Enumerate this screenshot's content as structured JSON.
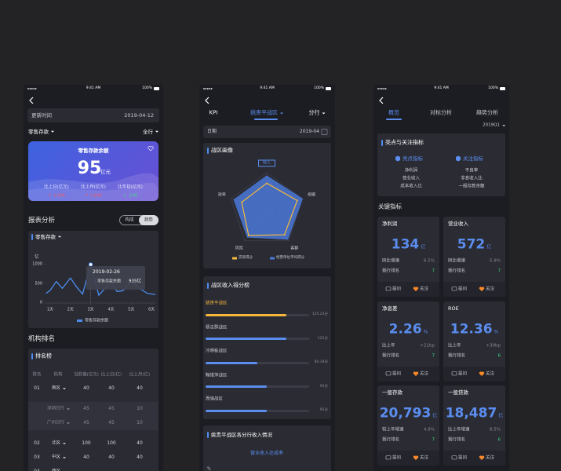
{
  "status_bar": {
    "time": "9:41 AM",
    "battery": "100%"
  },
  "overview_screen": {
    "update_label": "更新时间",
    "update_date": "2019-04-12",
    "metric_filter": "零售存款",
    "scope_filter": "全行",
    "balance_card": {
      "title": "零售存款余额",
      "value": "95",
      "unit": "亿元",
      "stats": [
        {
          "label": "比上日(亿元)",
          "value": "↑ +100"
        },
        {
          "label": "比上月(亿元)",
          "value": "↑ +100"
        },
        {
          "label": "比年初(亿元)",
          "value": "↓ -100"
        }
      ]
    },
    "report_title": "报表分析",
    "view_toggle": [
      "构成",
      "趋势"
    ],
    "trend_chart": {
      "type": "line",
      "title": "零售存款",
      "y_unit": "亿",
      "x": [
        0.8,
        1,
        1.3,
        1.6,
        2,
        2.3,
        2.6,
        3,
        3.4,
        3.7,
        4,
        4.3,
        4.6,
        5,
        5.4,
        5.8,
        6.2
      ],
      "xlim": [
        0.8,
        6.2
      ],
      "xticks": [
        {
          "value": 1,
          "label": "1天"
        },
        {
          "value": 2,
          "label": "2天"
        },
        {
          "value": 3,
          "label": "3天"
        },
        {
          "value": 4,
          "label": "4天"
        },
        {
          "value": 5,
          "label": "5天"
        },
        {
          "value": 6,
          "label": "6天"
        }
      ],
      "series": [
        {
          "name": "零售存款余额",
          "color": "#4d8ef0",
          "values": [
            250,
            330,
            560,
            380,
            650,
            420,
            230,
            1000,
            200,
            380,
            540,
            300,
            320,
            560,
            380,
            250,
            220
          ]
        }
      ],
      "ylim": [
        0,
        1000
      ],
      "yticks": [
        0,
        500,
        1000
      ],
      "grid": false,
      "tooltip": {
        "date": "2019-02-26",
        "series": "零售存款余额",
        "value": "935亿"
      }
    },
    "ranking_title": "机构排名",
    "ranking_table": {
      "title": "排名榜",
      "columns": [
        "排名",
        "机构",
        "当前值(亿元)",
        "比上日(亿)",
        "比上月(亿)"
      ],
      "rows": [
        {
          "rank": "01",
          "org": "南区",
          "cells": [
            "40",
            "40",
            "40"
          ]
        },
        {
          "org": "深圳分行",
          "cells": [
            "45",
            "45",
            "10"
          ]
        },
        {
          "org": "广州分行",
          "cells": [
            "45",
            "45",
            "10"
          ]
        },
        {
          "rank": "02",
          "org": "北区",
          "cells": [
            "100",
            "100",
            "40"
          ]
        },
        {
          "rank": "03",
          "org": "中区",
          "cells": [
            "40",
            "40",
            "40"
          ]
        },
        {
          "rank": "04",
          "org": "西区"
        }
      ]
    }
  },
  "kpi_screen": {
    "tabs": [
      "KPI",
      "姚贵平战区",
      "分行"
    ],
    "date_label": "日期",
    "date_value": "2019-04",
    "profile_title": "战区画像",
    "radar": {
      "type": "radar",
      "axes": [
        "收入",
        "规模",
        "客群",
        "风险",
        "效率"
      ],
      "rlim": [
        0,
        100
      ],
      "series": [
        {
          "name": "实际得分",
          "color": "#f5b83d",
          "values": [
            72,
            85,
            80,
            82,
            70
          ]
        },
        {
          "name": "经营单位平均得分",
          "color": "#4a78d8",
          "values": [
            92,
            100,
            95,
            88,
            92
          ]
        }
      ]
    },
    "score_title": "战区收入得分榜",
    "score_chart": {
      "type": "bar",
      "categories": [
        "姚贵平战区",
        "杨志群战区",
        "冷明栋战区",
        "鞠维萍战区",
        "周强战区"
      ],
      "values": [
        125.23,
        125,
        80.34,
        95,
        95
      ],
      "value_labels": [
        "125.23分",
        "125分",
        "80.34分",
        "95分",
        "95分"
      ],
      "colors": [
        "#f5b83d",
        "#5b8def",
        "#5b8def",
        "#5b8def",
        "#5b8def"
      ],
      "xlim": [
        0,
        160
      ]
    },
    "branch_title": "姚贵平战区各分行收入情况",
    "branch_metric": "营业收入达成率",
    "branch_unit": "%"
  },
  "summary_screen": {
    "tabs": [
      "概览",
      "对标分析",
      "趋势分析"
    ],
    "period": "2019Q1",
    "highlight_title": "亮点与关注指标",
    "highlights": {
      "title": "亮点指标",
      "items": [
        "净利润",
        "营业收入",
        "成本收入比"
      ]
    },
    "concerns": {
      "title": "关注指标",
      "items": [
        "不良率",
        "非息收入比",
        "一般存款余额"
      ]
    },
    "key_title": "关键指标",
    "card_actions": [
      "提问",
      "关注"
    ],
    "key_cards": [
      {
        "title": "净利润",
        "value": "134",
        "unit": "亿",
        "rows": [
          {
            "label": "同比增速",
            "value": "6.5%"
          },
          {
            "label": "我行排名",
            "value": "7"
          }
        ]
      },
      {
        "title": "营业收入",
        "value": "572",
        "unit": "亿",
        "rows": [
          {
            "label": "同比增速",
            "value": "5.9%"
          },
          {
            "label": "我行排名",
            "value": "7"
          }
        ]
      },
      {
        "title": "净息差",
        "value": "2.26",
        "unit": "%",
        "rows": [
          {
            "label": "比上年",
            "value": "+21bp"
          },
          {
            "label": "我行排名",
            "value": "7"
          }
        ]
      },
      {
        "title": "ROE",
        "value": "12.36",
        "unit": "%",
        "rows": [
          {
            "label": "比上年",
            "value": "+39bp"
          },
          {
            "label": "我行排名",
            "value": "6"
          }
        ]
      },
      {
        "title": "一般存款",
        "value": "20,793",
        "unit": "亿",
        "rows": [
          {
            "label": "较上年增速",
            "value": "4.8%"
          },
          {
            "label": "我行排名",
            "value": "7"
          }
        ]
      },
      {
        "title": "一般贷款",
        "value": "18,487",
        "unit": "亿",
        "rows": [
          {
            "label": "比上年增速",
            "value": "8.5%"
          },
          {
            "label": "我行排名",
            "value": "6"
          }
        ]
      }
    ]
  }
}
